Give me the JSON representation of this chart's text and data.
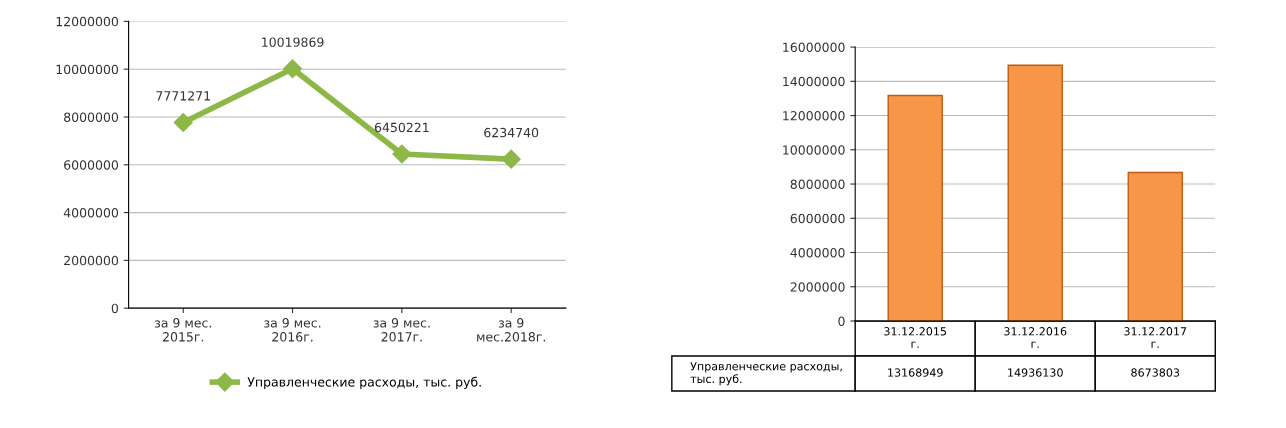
{
  "chart_data": [
    {
      "type": "line",
      "categories": [
        "за 9 мес.\n2015г.",
        "за 9 мес.\n2016г.",
        "за 9 мес.\n2017г.",
        "за 9\nмес.2018г."
      ],
      "series": [
        {
          "name": "Управленческие расходы, тыс. руб.",
          "color": "#8db848",
          "values": [
            7771271,
            10019869,
            6450221,
            6234740
          ]
        }
      ],
      "ylim": [
        0,
        12000000
      ],
      "yticks": [
        0,
        2000000,
        4000000,
        6000000,
        8000000,
        10000000,
        12000000
      ],
      "grid": "y",
      "legend": "bottom",
      "marker": "diamond",
      "data_labels": true
    },
    {
      "type": "bar",
      "categories": [
        "31.12.2015\nг.",
        "31.12.2016\nг.",
        "31.12.2017\nг."
      ],
      "series": [
        {
          "name": "Управленческие расходы,\nтыс. руб.",
          "color": "#f79646",
          "values": [
            13168949,
            14936130,
            8673803
          ]
        }
      ],
      "ylim": [
        0,
        16000000
      ],
      "yticks": [
        0,
        2000000,
        4000000,
        6000000,
        8000000,
        10000000,
        12000000,
        14000000,
        16000000
      ],
      "grid": "y",
      "data_labels": true
    }
  ]
}
